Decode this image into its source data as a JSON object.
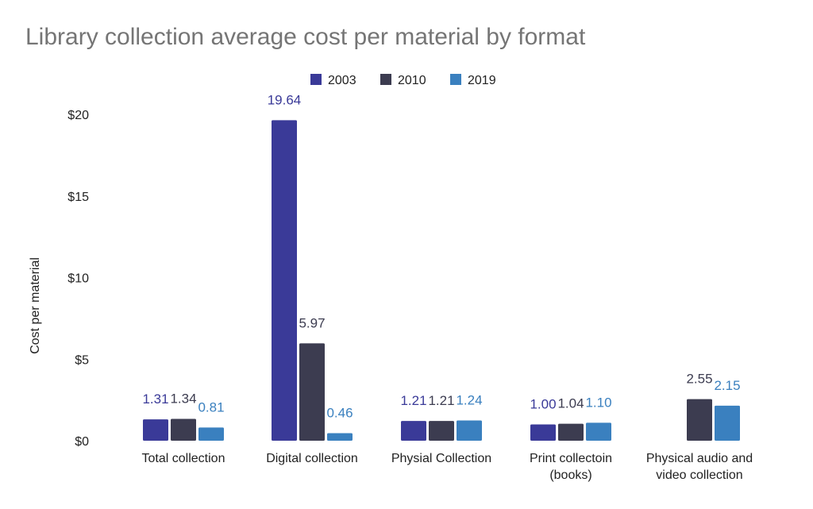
{
  "chart_data": {
    "type": "bar",
    "title": "Library collection average cost per material by format",
    "xlabel": "",
    "ylabel": "Cost per material",
    "ylim": [
      0,
      20
    ],
    "yticks": [
      0,
      5,
      10,
      15,
      20
    ],
    "ytick_labels": [
      "$0",
      "$5",
      "$10",
      "$15",
      "$20"
    ],
    "grid": false,
    "legend_position": "top-center",
    "categories": [
      [
        "Total collection"
      ],
      [
        "Digital collection"
      ],
      [
        "Physial Collection"
      ],
      [
        "Print collectoin",
        "(books)"
      ],
      [
        "Physical audio and",
        "video collection"
      ]
    ],
    "series": [
      {
        "name": "2003",
        "color": "#3a3a98",
        "values": [
          1.31,
          19.64,
          1.21,
          1.0,
          null
        ],
        "labels": [
          "1.31",
          "19.64",
          "1.21",
          "1.00",
          ""
        ]
      },
      {
        "name": "2010",
        "color": "#3c3c50",
        "values": [
          1.34,
          5.97,
          1.21,
          1.04,
          2.55
        ],
        "labels": [
          "1.34",
          "5.97",
          "1.21",
          "1.04",
          "2.55"
        ]
      },
      {
        "name": "2019",
        "color": "#3a80bf",
        "values": [
          0.81,
          0.46,
          1.24,
          1.1,
          2.15
        ],
        "labels": [
          "0.81",
          "0.46",
          "1.24",
          "1.10",
          "2.15"
        ]
      }
    ]
  }
}
